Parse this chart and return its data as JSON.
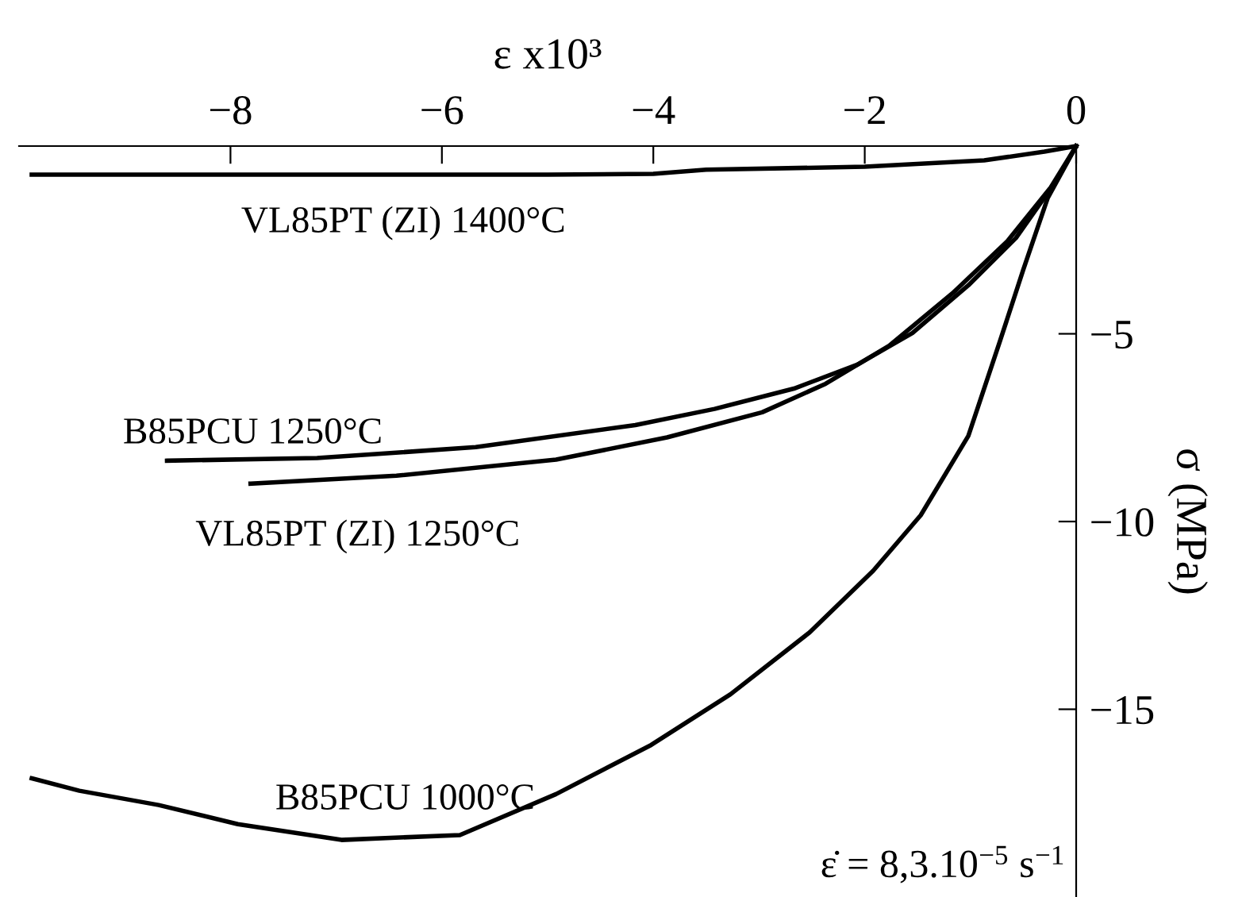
{
  "chart_data": {
    "type": "line",
    "xlabel": "ε x10³",
    "ylabel": "σ (MPa)",
    "xlim": [
      -10,
      0
    ],
    "ylim": [
      -20,
      0
    ],
    "xticks": [
      -8,
      -6,
      -4,
      -2,
      0
    ],
    "yticks": [
      -15,
      -10,
      -5
    ],
    "grid": false,
    "legend": false,
    "marker": "none",
    "line_style": "solid",
    "series": [
      {
        "name": "VL85PT (ZI) 1400°C",
        "color": "#000000",
        "x": [
          -9.88,
          -7.0,
          -5.0,
          -4.0,
          -3.5,
          -2.0,
          -0.87,
          -0.3,
          0
        ],
        "values": [
          -0.76,
          -0.76,
          -0.76,
          -0.74,
          -0.63,
          -0.55,
          -0.38,
          -0.15,
          0
        ]
      },
      {
        "name": "B85PCU 1250°C",
        "color": "#000000",
        "x": [
          -8.6,
          -7.18,
          -5.68,
          -4.17,
          -3.42,
          -2.67,
          -2.07,
          -1.55,
          -1.02,
          -0.57,
          -0.2,
          0
        ],
        "values": [
          -8.38,
          -8.31,
          -8.02,
          -7.43,
          -7.0,
          -6.46,
          -5.82,
          -4.98,
          -3.71,
          -2.45,
          -0.97,
          0
        ]
      },
      {
        "name": "VL85PT (ZI) 1250°C",
        "color": "#000000",
        "x": [
          -7.81,
          -6.43,
          -4.92,
          -3.87,
          -2.97,
          -2.37,
          -1.77,
          -1.17,
          -0.65,
          -0.24,
          0
        ],
        "values": [
          -8.99,
          -8.78,
          -8.35,
          -7.76,
          -7.09,
          -6.33,
          -5.32,
          -3.92,
          -2.53,
          -1.1,
          0
        ]
      },
      {
        "name": "B85PCU 1000°C",
        "color": "#000000",
        "x": [
          -9.88,
          -9.43,
          -8.68,
          -7.93,
          -6.95,
          -5.83,
          -4.92,
          -4.02,
          -3.27,
          -2.52,
          -1.92,
          -1.47,
          -1.02,
          -0.72,
          -0.5,
          -0.27,
          0
        ],
        "values": [
          -16.84,
          -17.17,
          -17.55,
          -18.06,
          -18.48,
          -18.35,
          -17.26,
          -15.95,
          -14.6,
          -12.95,
          -11.31,
          -9.83,
          -7.72,
          -5.19,
          -3.29,
          -1.39,
          0
        ]
      }
    ],
    "annotations": [
      "ε̇ = 8,3.10$^{−5}$ s$^{−1}$"
    ]
  }
}
